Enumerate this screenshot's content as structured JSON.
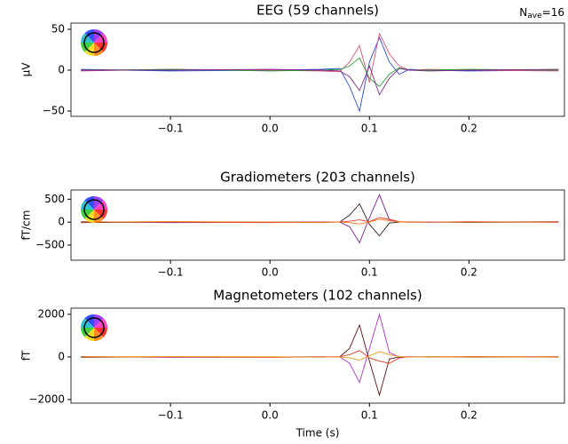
{
  "chart_data": [
    {
      "type": "line",
      "title": "EEG (59 channels)",
      "y_label": "µV",
      "annotation": {
        "symbol": "N",
        "subscript": "ave",
        "text": "=16"
      },
      "x": [
        -0.19,
        -0.1,
        0,
        0.05,
        0.07,
        0.08,
        0.09,
        0.1,
        0.11,
        0.12,
        0.13,
        0.14,
        0.16,
        0.2,
        0.29
      ],
      "xlim": [
        -0.2,
        0.296
      ],
      "xticks": [
        {
          "value": -0.1,
          "label": "−0.1"
        },
        {
          "value": 0,
          "label": "0.0"
        },
        0.1,
        0.2
      ],
      "ylim": [
        -56.5,
        57.6
      ],
      "yticks": [
        {
          "value": -50,
          "label": "−50"
        },
        0,
        50
      ],
      "series": [
        {
          "color": "#2a4cd8",
          "values": [
            1,
            -1,
            0,
            1,
            2,
            -20,
            -50,
            10,
            40,
            10,
            -5,
            1,
            0,
            -1,
            0
          ]
        },
        {
          "color": "#e0507a",
          "values": [
            -1,
            1,
            0,
            -1,
            -2,
            10,
            30,
            -15,
            45,
            20,
            5,
            0,
            1,
            0,
            -1
          ]
        },
        {
          "color": "#2e9a3a",
          "values": [
            0,
            1,
            -1,
            0,
            1,
            5,
            15,
            -10,
            -20,
            -5,
            3,
            0,
            0,
            1,
            0
          ]
        },
        {
          "color": "#7a2a8a",
          "values": [
            0,
            0,
            1,
            0,
            -1,
            -8,
            -25,
            5,
            -30,
            -10,
            2,
            0,
            -1,
            0,
            1
          ]
        }
      ]
    },
    {
      "type": "line",
      "title": "Gradiometers (203 channels)",
      "y_label": "fT/cm",
      "x": [
        -0.19,
        -0.1,
        0,
        0.05,
        0.07,
        0.08,
        0.09,
        0.1,
        0.11,
        0.12,
        0.13,
        0.14,
        0.16,
        0.2,
        0.29
      ],
      "xlim": [
        -0.2,
        0.296
      ],
      "xticks": [
        {
          "value": -0.1,
          "label": "−0.1"
        },
        {
          "value": 0,
          "label": "0.0"
        },
        0.1,
        0.2
      ],
      "ylim": [
        -830,
        700
      ],
      "yticks": [
        {
          "value": -500,
          "label": "−500"
        },
        0,
        500
      ],
      "series": [
        {
          "color": "#7a1f9a",
          "values": [
            10,
            -10,
            0,
            5,
            0,
            -100,
            -450,
            100,
            600,
            50,
            0,
            5,
            -5,
            0,
            10
          ]
        },
        {
          "color": "#3a1a1a",
          "values": [
            -10,
            5,
            0,
            -5,
            0,
            150,
            400,
            -50,
            -300,
            -20,
            0,
            0,
            5,
            -5,
            0
          ]
        },
        {
          "color": "#e84030",
          "values": [
            5,
            0,
            -10,
            0,
            5,
            20,
            50,
            10,
            100,
            60,
            10,
            0,
            0,
            10,
            -5
          ]
        },
        {
          "color": "#f07a20",
          "values": [
            0,
            10,
            5,
            -5,
            0,
            -10,
            -40,
            5,
            60,
            30,
            5,
            -5,
            0,
            0,
            5
          ]
        }
      ]
    },
    {
      "type": "line",
      "title": "Magnetometers (102 channels)",
      "y_label": "fT",
      "x_label": "Time (s)",
      "x": [
        -0.19,
        -0.1,
        0,
        0.05,
        0.07,
        0.08,
        0.09,
        0.1,
        0.11,
        0.12,
        0.13,
        0.14,
        0.16,
        0.2,
        0.29
      ],
      "xlim": [
        -0.2,
        0.296
      ],
      "xticks": [
        {
          "value": -0.1,
          "label": "−0.1"
        },
        {
          "value": 0,
          "label": "0.0"
        },
        0.1,
        0.2
      ],
      "ylim": [
        -2170,
        2290
      ],
      "yticks": [
        {
          "value": -2000,
          "label": "−2000"
        },
        0,
        2000
      ],
      "series": [
        {
          "color": "#b030c8",
          "values": [
            20,
            -20,
            0,
            10,
            0,
            -300,
            -1200,
            400,
            2000,
            200,
            0,
            10,
            -10,
            0,
            20
          ]
        },
        {
          "color": "#5a1010",
          "values": [
            -20,
            10,
            0,
            -10,
            0,
            400,
            1500,
            -200,
            -1800,
            -100,
            0,
            0,
            10,
            -10,
            0
          ]
        },
        {
          "color": "#e83828",
          "values": [
            10,
            0,
            -20,
            0,
            10,
            100,
            300,
            -50,
            -200,
            -300,
            -50,
            0,
            0,
            20,
            -10
          ]
        },
        {
          "color": "#e8a020",
          "values": [
            0,
            20,
            10,
            -10,
            0,
            -50,
            -150,
            50,
            250,
            100,
            20,
            -10,
            0,
            0,
            10
          ]
        }
      ]
    }
  ]
}
